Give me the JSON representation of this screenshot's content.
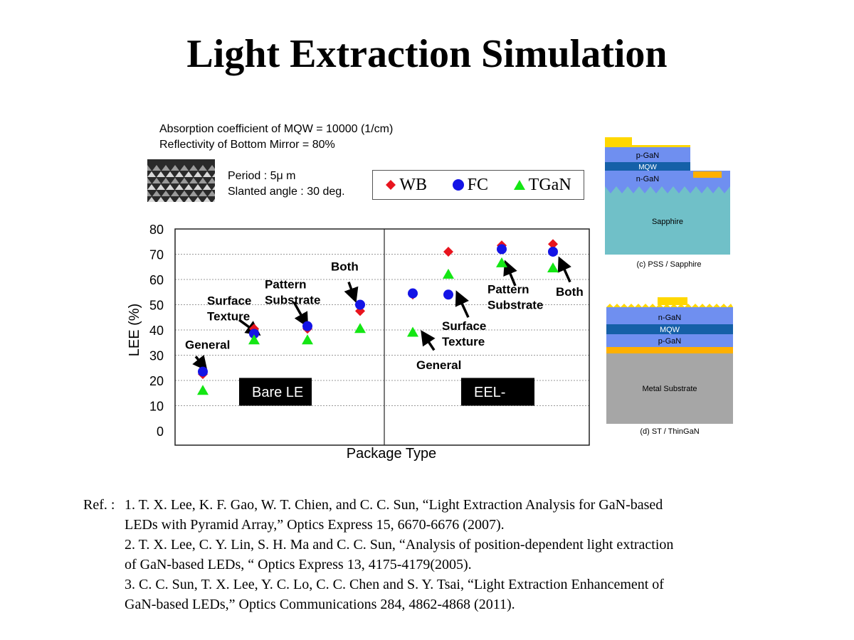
{
  "title": "Light Extraction Simulation",
  "conditions": {
    "line1": "Absorption coefficient of MQW = 10000 (1/cm)",
    "line2": "Reflectivity of Bottom Mirror = 80%",
    "period": "Period : 5μ m",
    "angle": "Slanted angle : 30 deg."
  },
  "chart_data": {
    "type": "scatter",
    "xlabel": "Package Type",
    "ylabel": "LEE (%)",
    "ylim": [
      0,
      80
    ],
    "yticks": [
      0,
      10,
      20,
      30,
      40,
      50,
      60,
      70,
      80
    ],
    "grid": true,
    "legend": "top",
    "groups": [
      "Bare LE",
      "EEL-"
    ],
    "categories": [
      "General",
      "Surface Texture",
      "Pattern Substrate",
      "Both",
      "General",
      "Surface Texture",
      "Pattern Substrate",
      "Both"
    ],
    "series": [
      {
        "name": "WB",
        "marker": "diamond",
        "color": "#e8141e",
        "values": [
          22.5,
          40.5,
          40.5,
          47.5,
          54,
          71,
          73.5,
          74
        ]
      },
      {
        "name": "FC",
        "marker": "circle",
        "color": "#1414e6",
        "values": [
          23.5,
          38.5,
          41.5,
          50,
          54.5,
          54,
          72,
          71
        ]
      },
      {
        "name": "TGaN",
        "marker": "triangle",
        "color": "#14e614",
        "values": [
          16,
          36,
          36,
          40.5,
          39,
          62,
          66.5,
          64.5
        ]
      }
    ],
    "annotations": [
      {
        "text": [
          "General"
        ]
      },
      {
        "text": [
          "Surface",
          "Texture"
        ]
      },
      {
        "text": [
          "Pattern",
          "Substrate"
        ]
      },
      {
        "text": [
          "Both"
        ]
      },
      {
        "text": [
          "General"
        ]
      },
      {
        "text": [
          "Surface",
          "Texture"
        ]
      },
      {
        "text": [
          "Pattern",
          "Substrate"
        ]
      },
      {
        "text": [
          "Both"
        ]
      }
    ]
  },
  "structures": [
    {
      "caption": "(c) PSS / Sapphire",
      "layers": [
        "p-GaN",
        "MQW",
        "n-GaN",
        "Sapphire"
      ]
    },
    {
      "caption": "(d) ST / ThinGaN",
      "layers": [
        "n-GaN",
        "MQW",
        "p-GaN",
        "Metal Substrate"
      ]
    }
  ],
  "references": {
    "lead": "Ref. :",
    "lines": [
      "1. T. X. Lee, K. F. Gao, W. T. Chien, and C. C. Sun, “Light Extraction Analysis for GaN-based",
      "LEDs with Pyramid Array,”  Optics Express 15, 6670-6676 (2007).",
      "2. T. X. Lee, C. Y. Lin, S. H. Ma and C. C. Sun, “Analysis of position-dependent light extraction",
      "of GaN-based LEDs, “ Optics Express 13, 4175-4179(2005).",
      "3. C. C. Sun, T. X. Lee, Y. C. Lo, C. C. Chen and S. Y. Tsai, “Light Extraction Enhancement of",
      "GaN-based LEDs,” Optics Communications 284, 4862-4868 (2011)."
    ]
  }
}
